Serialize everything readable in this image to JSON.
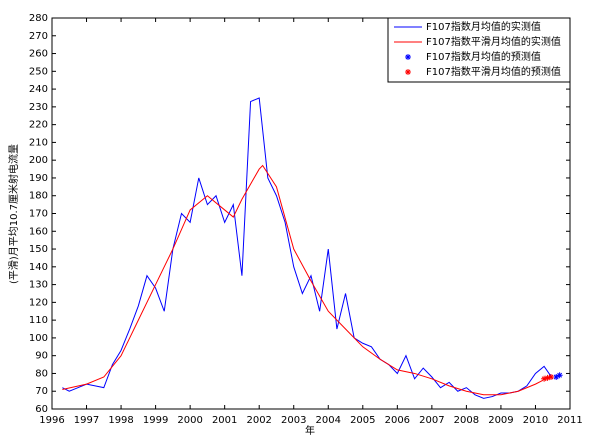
{
  "chart_data": {
    "type": "line",
    "xlabel": "年",
    "ylabel": "(平滑)月平均10.7厘米射电流量",
    "xlim": [
      1996,
      2011
    ],
    "xticks": [
      1996,
      1997,
      1998,
      1999,
      2000,
      2001,
      2002,
      2003,
      2004,
      2005,
      2006,
      2007,
      2008,
      2009,
      2010,
      2011
    ],
    "ylim": [
      60,
      280
    ],
    "yticks": [
      60,
      70,
      80,
      90,
      100,
      110,
      120,
      130,
      140,
      150,
      160,
      170,
      180,
      190,
      200,
      210,
      220,
      230,
      240,
      250,
      260,
      270,
      280
    ],
    "legend": "top-right",
    "series": [
      {
        "name": "F107指数月均值的实测值",
        "color": "#0000ff",
        "style": "line",
        "x": [
          1996.3,
          1996.5,
          1996.75,
          1997.0,
          1997.25,
          1997.5,
          1997.75,
          1998.0,
          1998.25,
          1998.5,
          1998.75,
          1999.0,
          1999.25,
          1999.5,
          1999.75,
          2000.0,
          2000.25,
          2000.5,
          2000.75,
          2001.0,
          2001.25,
          2001.5,
          2001.75,
          2002.0,
          2002.25,
          2002.5,
          2002.75,
          2003.0,
          2003.25,
          2003.5,
          2003.75,
          2004.0,
          2004.25,
          2004.5,
          2004.75,
          2005.0,
          2005.25,
          2005.5,
          2005.75,
          2006.0,
          2006.25,
          2006.5,
          2006.75,
          2007.0,
          2007.25,
          2007.5,
          2007.75,
          2008.0,
          2008.25,
          2008.5,
          2008.75,
          2009.0,
          2009.25,
          2009.5,
          2009.75,
          2010.0,
          2010.25,
          2010.5
        ],
        "values": [
          72,
          70,
          72,
          74,
          73,
          72,
          85,
          93,
          105,
          118,
          135,
          128,
          115,
          150,
          170,
          165,
          190,
          175,
          180,
          165,
          175,
          135,
          233,
          235,
          190,
          180,
          165,
          140,
          125,
          135,
          115,
          150,
          105,
          125,
          100,
          97,
          95,
          88,
          85,
          80,
          90,
          77,
          83,
          78,
          72,
          75,
          70,
          72,
          68,
          66,
          67,
          69,
          69,
          70,
          73,
          80,
          84,
          77
        ]
      },
      {
        "name": "F107指数平滑月均值的实测值",
        "color": "#ff0000",
        "style": "line",
        "x": [
          1996.3,
          1997,
          1997.5,
          1998,
          1998.5,
          1999,
          1999.5,
          2000,
          2000.5,
          2001,
          2001.25,
          2001.5,
          2002,
          2002.1,
          2002.5,
          2003,
          2003.5,
          2004,
          2004.5,
          2005,
          2005.5,
          2006,
          2006.5,
          2007,
          2007.5,
          2008,
          2008.5,
          2009,
          2009.5,
          2010,
          2010.2
        ],
        "values": [
          71,
          74,
          78,
          90,
          110,
          130,
          150,
          172,
          180,
          172,
          168,
          178,
          195,
          197,
          185,
          150,
          132,
          115,
          105,
          95,
          88,
          82,
          80,
          77,
          73,
          70,
          68,
          68,
          70,
          74,
          76
        ]
      },
      {
        "name": "F107指数月均值的预测值",
        "color": "#0000ff",
        "style": "marker",
        "x": [
          2010.6,
          2010.7
        ],
        "values": [
          78,
          79
        ]
      },
      {
        "name": "F107指数平滑月均值的预测值",
        "color": "#ff0000",
        "style": "marker",
        "x": [
          2010.25,
          2010.35,
          2010.45
        ],
        "values": [
          77,
          77.5,
          78
        ]
      }
    ]
  }
}
